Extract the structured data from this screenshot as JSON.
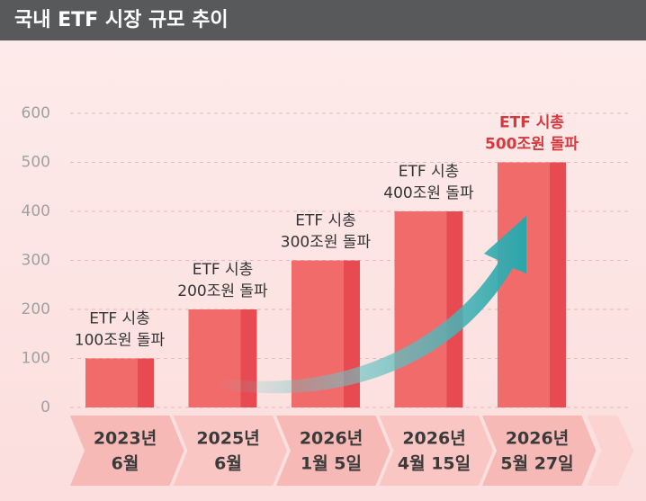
{
  "chart_data": {
    "type": "bar",
    "title": "국내 ETF 시장 규모 추이",
    "categories": [
      [
        "2023년",
        "6월"
      ],
      [
        "2025년",
        "6월"
      ],
      [
        "2026년",
        "1월 5일"
      ],
      [
        "2026년",
        "4월 15일"
      ],
      [
        "2026년",
        "5월 27일"
      ]
    ],
    "values": [
      100,
      200,
      300,
      400,
      500
    ],
    "value_labels": [
      [
        "ETF 시총",
        "100조원 돌파"
      ],
      [
        "ETF 시총",
        "200조원 돌파"
      ],
      [
        "ETF 시총",
        "300조원 돌파"
      ],
      [
        "ETF 시총",
        "400조원 돌파"
      ],
      [
        "ETF 시총",
        "500조원 돌파"
      ]
    ],
    "color": "#f26b6b",
    "highlight_color": "#d63a3f",
    "ylim": [
      0,
      600
    ],
    "yticks": [
      0,
      100,
      200,
      300,
      400,
      500,
      600
    ],
    "grid": true
  }
}
